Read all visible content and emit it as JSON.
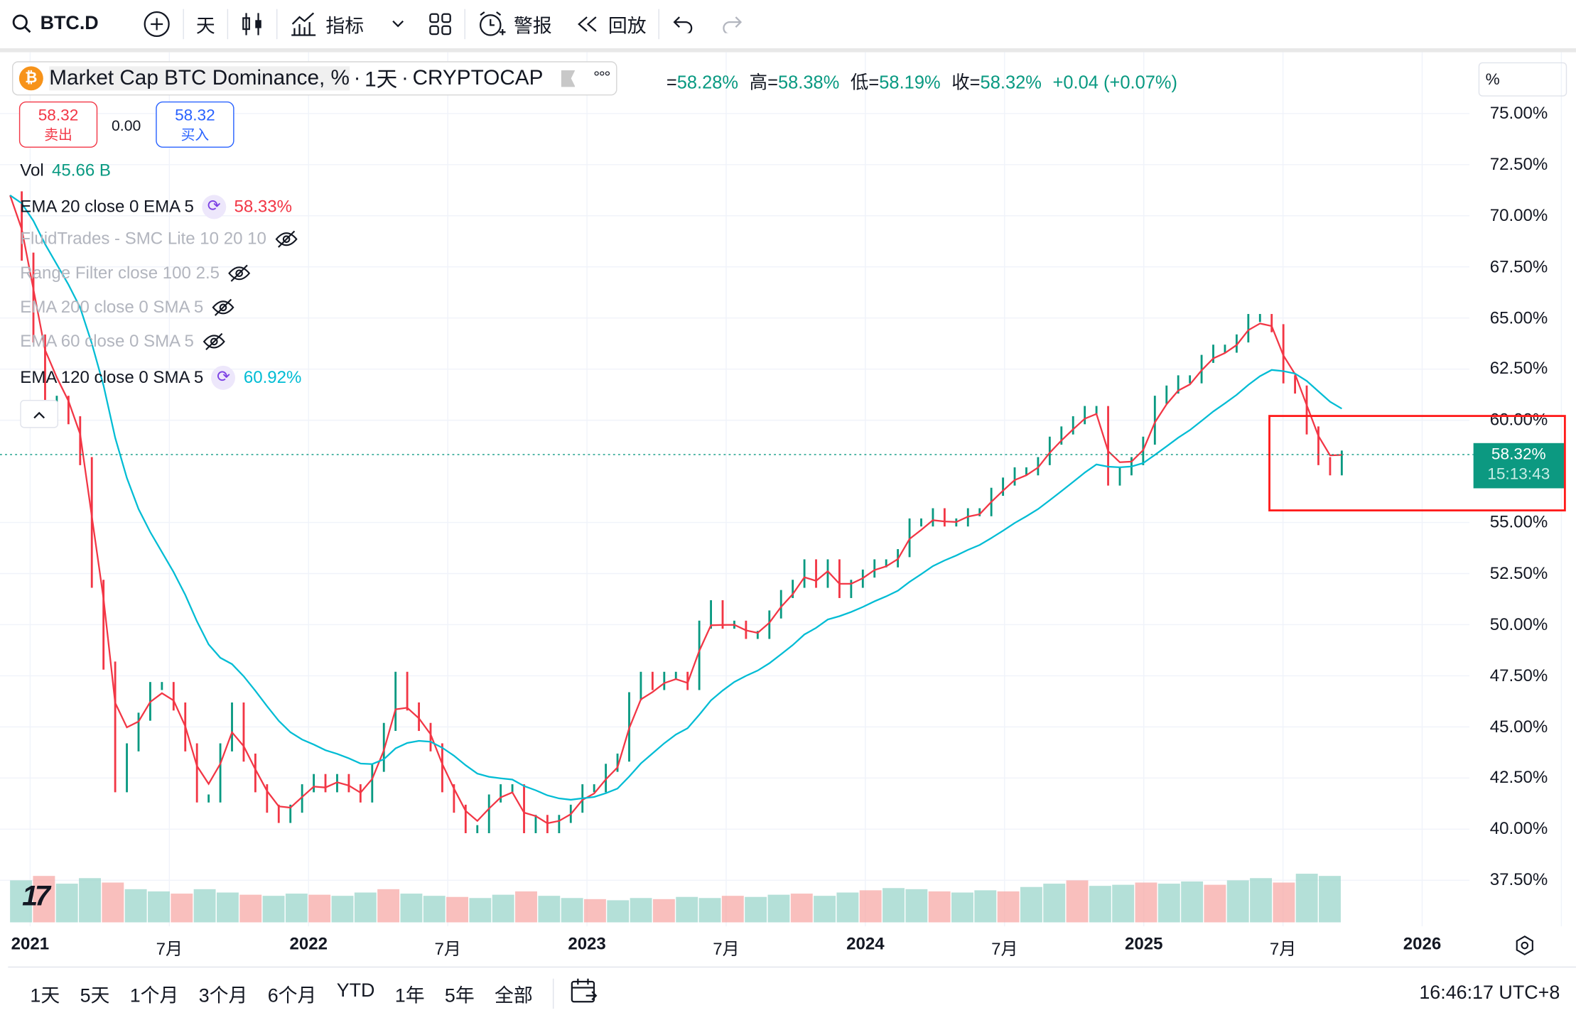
{
  "toolbar": {
    "symbol": "BTC.D",
    "interval": "天",
    "indicators": "指标",
    "alerts": "警报",
    "replay": "回放"
  },
  "legend": {
    "title": "Market Cap BTC Dominance, %",
    "sep1": "·",
    "interval": "1天",
    "sep2": "·",
    "exchange": "CRYPTOCAP",
    "open_label": "=",
    "open": "58.28%",
    "high_label": "高=",
    "high": "58.38%",
    "low_label": "低=",
    "low": "58.19%",
    "close_label": "收=",
    "close": "58.32%",
    "change": "+0.04 (+0.07%)"
  },
  "trade": {
    "sell_price": "58.32",
    "sell_label": "卖出",
    "spread": "0.00",
    "buy_price": "58.32",
    "buy_label": "买入"
  },
  "indicators": [
    {
      "name": "Vol",
      "value": "45.66 B",
      "color": "#089981"
    },
    {
      "name": "EMA 20 close 0 EMA 5",
      "value": "58.33%",
      "color": "#f23645"
    },
    {
      "name": "FluidTrades - SMC Lite 10 20 10",
      "hidden": true
    },
    {
      "name": "Range Filter close 100 2.5",
      "hidden": true
    },
    {
      "name": "EMA 200 close 0 SMA 5",
      "hidden": true
    },
    {
      "name": "EMA 60 close 0 SMA 5",
      "hidden": true
    },
    {
      "name": "EMA 120 close 0 SMA 5",
      "value": "60.92%",
      "color": "#00bcd4"
    }
  ],
  "price_axis": {
    "unit": "%",
    "current_price": "58.32%",
    "countdown": "15:13:43"
  },
  "time_axis": [
    "2021",
    "7月",
    "2022",
    "7月",
    "2023",
    "7月",
    "2024",
    "7月",
    "2025",
    "7月",
    "2026"
  ],
  "bottom": {
    "ranges": [
      "1天",
      "5天",
      "1个月",
      "3个月",
      "6个月",
      "YTD",
      "1年",
      "5年",
      "全部"
    ],
    "clock": "16:46:17 UTC+8"
  },
  "colors": {
    "up": "#089981",
    "down": "#f23645",
    "ema20": "#f23645",
    "ema120": "#00bcd4",
    "annotation": "#ff1a1a"
  },
  "chart_data": {
    "type": "line",
    "title": "Market Cap BTC Dominance, %",
    "ylabel": "%",
    "ylim": [
      35,
      76
    ],
    "yticks": [
      "75.00%",
      "72.50%",
      "70.00%",
      "67.50%",
      "65.00%",
      "62.50%",
      "60.00%",
      "55.00%",
      "52.50%",
      "50.00%",
      "47.50%",
      "45.00%",
      "42.50%",
      "40.00%",
      "37.50%"
    ],
    "start": "2021-01-01",
    "step": "half-month",
    "values": [
      71,
      68,
      64,
      61,
      61,
      60,
      58,
      52,
      48,
      42,
      44,
      45.5,
      47,
      47,
      46,
      44,
      41.5,
      41.5,
      44,
      46,
      43.5,
      42,
      41,
      40.5,
      41,
      42,
      42.5,
      42,
      42.5,
      42,
      41.5,
      43,
      45,
      47.5,
      46,
      45,
      44,
      42,
      41,
      40,
      40,
      41.5,
      42,
      42,
      40,
      40.5,
      40,
      40.5,
      41,
      42,
      42,
      43,
      43.5,
      46.5,
      47.5,
      47,
      47.5,
      47.5,
      47,
      50,
      51,
      50,
      50,
      49.5,
      49.5,
      50.5,
      51.5,
      52,
      53,
      52,
      53,
      51.5,
      52,
      52.5,
      53,
      53,
      53.5,
      55,
      55,
      55.5,
      55,
      55,
      55.5,
      55.5,
      56.5,
      57,
      57.5,
      57.5,
      58,
      59,
      59.5,
      60,
      60.5,
      60.5,
      57,
      57.5,
      58,
      59,
      61,
      61.5,
      62,
      62,
      63,
      63.5,
      63.5,
      64,
      65,
      65,
      64.5,
      62,
      61.5,
      59.5,
      58,
      57.5,
      58.32
    ],
    "volume_monthly_B": [
      38,
      42,
      35,
      40,
      36,
      30,
      28,
      26,
      30,
      27,
      25,
      24,
      26,
      25,
      24,
      27,
      30,
      26,
      24,
      23,
      22,
      25,
      28,
      24,
      22,
      21,
      20,
      22,
      21,
      23,
      22,
      24,
      23,
      25,
      26,
      24,
      27,
      29,
      31,
      30,
      28,
      27,
      29,
      28,
      32,
      35,
      38,
      33,
      34,
      36,
      35,
      37,
      34,
      38,
      40,
      36,
      44,
      42
    ]
  }
}
